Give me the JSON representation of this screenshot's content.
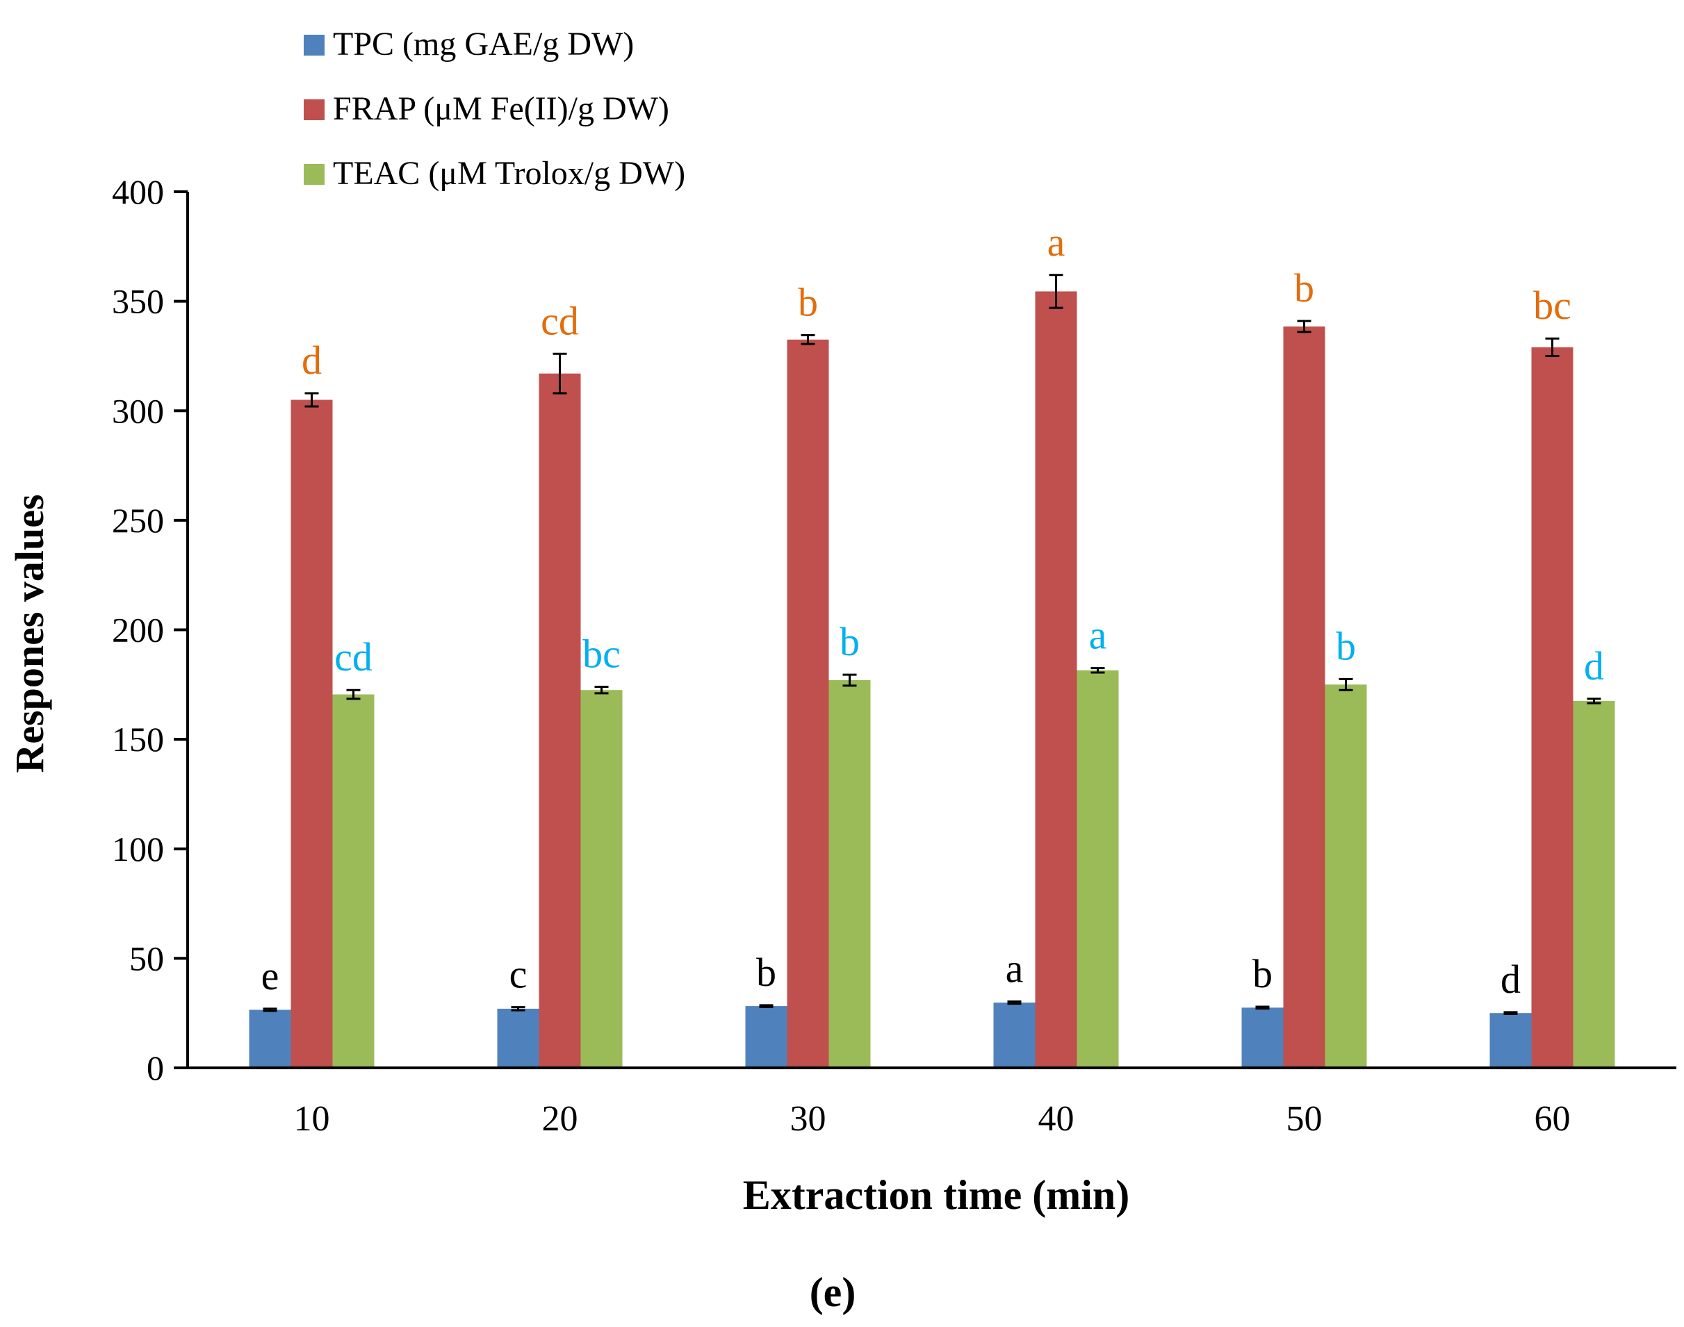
{
  "chart_data": {
    "type": "bar",
    "title": "",
    "panel_label": "(e)",
    "xlabel": "Extraction time (min)",
    "ylabel": "Respones values",
    "categories": [
      "10",
      "20",
      "30",
      "40",
      "50",
      "60"
    ],
    "ylim": [
      0,
      400
    ],
    "yticks": [
      0,
      50,
      100,
      150,
      200,
      250,
      300,
      350,
      400
    ],
    "grid": false,
    "legend_position": "top-left",
    "series": [
      {
        "name": "TPC (mg GAE/g DW)",
        "color": "#4F81BD",
        "label_color": "#000000",
        "values": [
          26.5,
          27.0,
          28.2,
          29.8,
          27.5,
          25.0
        ],
        "errors": [
          0.5,
          0.7,
          0.4,
          0.5,
          0.4,
          0.4
        ],
        "letters": [
          "e",
          "c",
          "b",
          "a",
          "b",
          "d"
        ]
      },
      {
        "name": "FRAP (μM Fe(II)/g DW)",
        "color": "#C0504D",
        "label_color": "#E46C0A",
        "values": [
          305,
          317,
          332.5,
          354.5,
          338.5,
          329
        ],
        "errors": [
          3,
          9,
          2,
          7.5,
          2.5,
          4
        ],
        "letters": [
          "d",
          "cd",
          "b",
          "a",
          "b",
          "bc"
        ]
      },
      {
        "name": "TEAC (μM Trolox/g DW)",
        "color": "#9BBB59",
        "label_color": "#00B0F0",
        "values": [
          170.5,
          172.5,
          177,
          181.5,
          175,
          167.5
        ],
        "errors": [
          2,
          1.5,
          2.5,
          1,
          2.5,
          1
        ],
        "letters": [
          "cd",
          "bc",
          "b",
          "a",
          "b",
          "d"
        ]
      }
    ]
  }
}
